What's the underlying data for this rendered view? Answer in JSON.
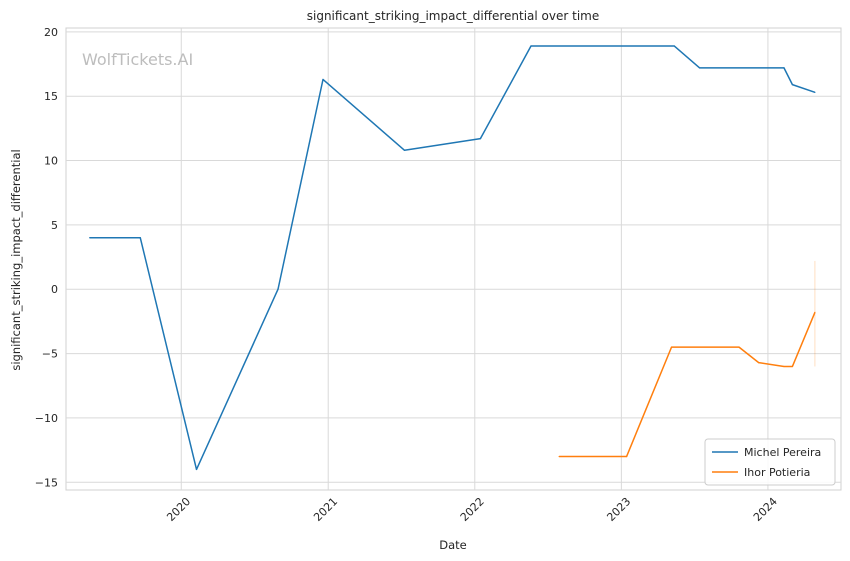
{
  "chart_data": {
    "type": "line",
    "title": "significant_striking_impact_differential over time",
    "xlabel": "Date",
    "ylabel": "significant_striking_impact_differential",
    "watermark": "WolfTickets.AI",
    "grid": true,
    "legend_position": "bottom-right",
    "xlim": [
      "2019-03-20",
      "2024-07-01"
    ],
    "ylim": [
      -15.6,
      20.3
    ],
    "x_ticks": [
      "2020-01-01",
      "2021-01-01",
      "2022-01-01",
      "2023-01-01",
      "2024-01-01"
    ],
    "x_tick_labels": [
      "2020",
      "2021",
      "2022",
      "2023",
      "2024"
    ],
    "y_ticks": [
      -15,
      -10,
      -5,
      0,
      5,
      10,
      15,
      20
    ],
    "y_tick_labels": [
      "−15",
      "−10",
      "−5",
      "0",
      "5",
      "10",
      "15",
      "20"
    ],
    "series": [
      {
        "name": "Michel Pereira",
        "color": "#1f77b4",
        "points": [
          {
            "x": "2019-05-18",
            "y": 4.0
          },
          {
            "x": "2019-09-21",
            "y": 4.0
          },
          {
            "x": "2020-02-08",
            "y": -14.0
          },
          {
            "x": "2020-08-29",
            "y": 0.0
          },
          {
            "x": "2020-12-19",
            "y": 16.3
          },
          {
            "x": "2021-07-10",
            "y": 10.8
          },
          {
            "x": "2022-01-15",
            "y": 11.7
          },
          {
            "x": "2022-05-21",
            "y": 18.9
          },
          {
            "x": "2023-05-13",
            "y": 18.9
          },
          {
            "x": "2023-07-15",
            "y": 17.2
          },
          {
            "x": "2024-02-10",
            "y": 17.2
          },
          {
            "x": "2024-03-02",
            "y": 15.9
          },
          {
            "x": "2024-04-27",
            "y": 15.3
          }
        ]
      },
      {
        "name": "Ihor Potieria",
        "color": "#ff7f0e",
        "points": [
          {
            "x": "2022-07-30",
            "y": -13.0
          },
          {
            "x": "2023-01-14",
            "y": -13.0
          },
          {
            "x": "2023-05-06",
            "y": -4.5
          },
          {
            "x": "2023-10-21",
            "y": -4.5
          },
          {
            "x": "2023-12-09",
            "y": -5.7
          },
          {
            "x": "2024-02-10",
            "y": -6.0
          },
          {
            "x": "2024-03-02",
            "y": -6.0
          },
          {
            "x": "2024-04-27",
            "y": -1.8
          }
        ],
        "error_band": {
          "x": "2024-04-27",
          "low": -6.0,
          "high": 2.2
        }
      }
    ]
  }
}
